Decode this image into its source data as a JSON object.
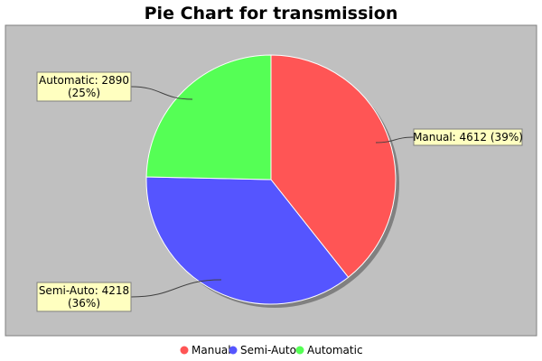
{
  "chart_data": {
    "type": "pie",
    "title": "Pie Chart for transmission",
    "categories": [
      "Manual",
      "Semi-Auto",
      "Automatic"
    ],
    "values": [
      4612,
      4218,
      2890
    ],
    "percent_labels": [
      "39%",
      "36%",
      "25%"
    ],
    "colors": [
      "#ff5555",
      "#5555ff",
      "#55ff55"
    ],
    "slice_labels": [
      [
        "Manual: 4612 (39%)"
      ],
      [
        "Semi-Auto: 4218",
        "(36%)"
      ],
      [
        "Automatic: 2890",
        "(25%)"
      ]
    ],
    "legend": {
      "position": "bottom",
      "entries": [
        "Manual",
        "Semi-Auto",
        "Automatic"
      ]
    },
    "plot_background": "#c0c0c0",
    "label_background": "#ffffc0"
  }
}
